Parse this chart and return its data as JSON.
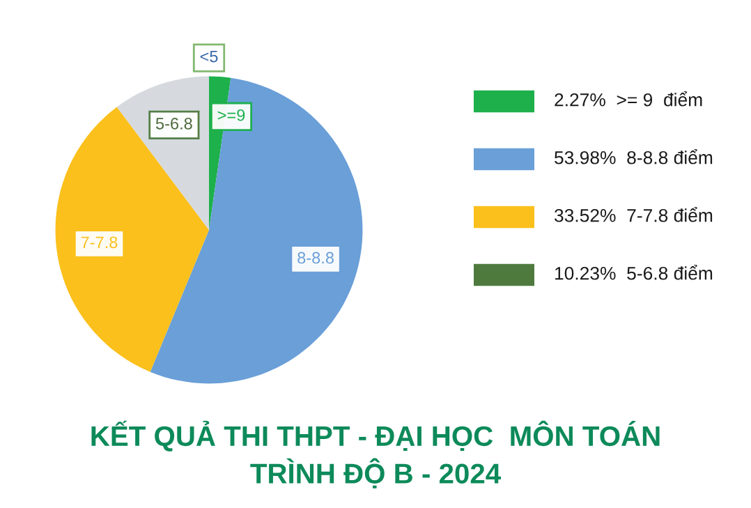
{
  "chart_data": [
    {
      "type": "pie",
      "title": "KẾT QUẢ THI THPT - ĐẠI HỌC  MÔN TOÁN\nTRÌNH ĐỘ B - 2024",
      "categories": [
        ">=9",
        "8-8.8",
        "7-7.8",
        "5-6.8",
        "<5"
      ],
      "values": [
        2.27,
        53.98,
        33.52,
        10.23,
        0
      ],
      "colors": [
        "#1db04b",
        "#6a9fd8",
        "#fbc01c",
        "#d6dadf",
        null
      ]
    },
    {
      "type": "other",
      "categories": [
        "2.27%  >= 9  điểm",
        "53.98%  8-8.8 điểm",
        "33.52%  7-7.8 điểm",
        "10.23%  5-6.8 điểm"
      ],
      "colors": [
        "#1db04b",
        "#6a9fd8",
        "#fbc01c",
        "#4e7a3e"
      ]
    }
  ]
}
